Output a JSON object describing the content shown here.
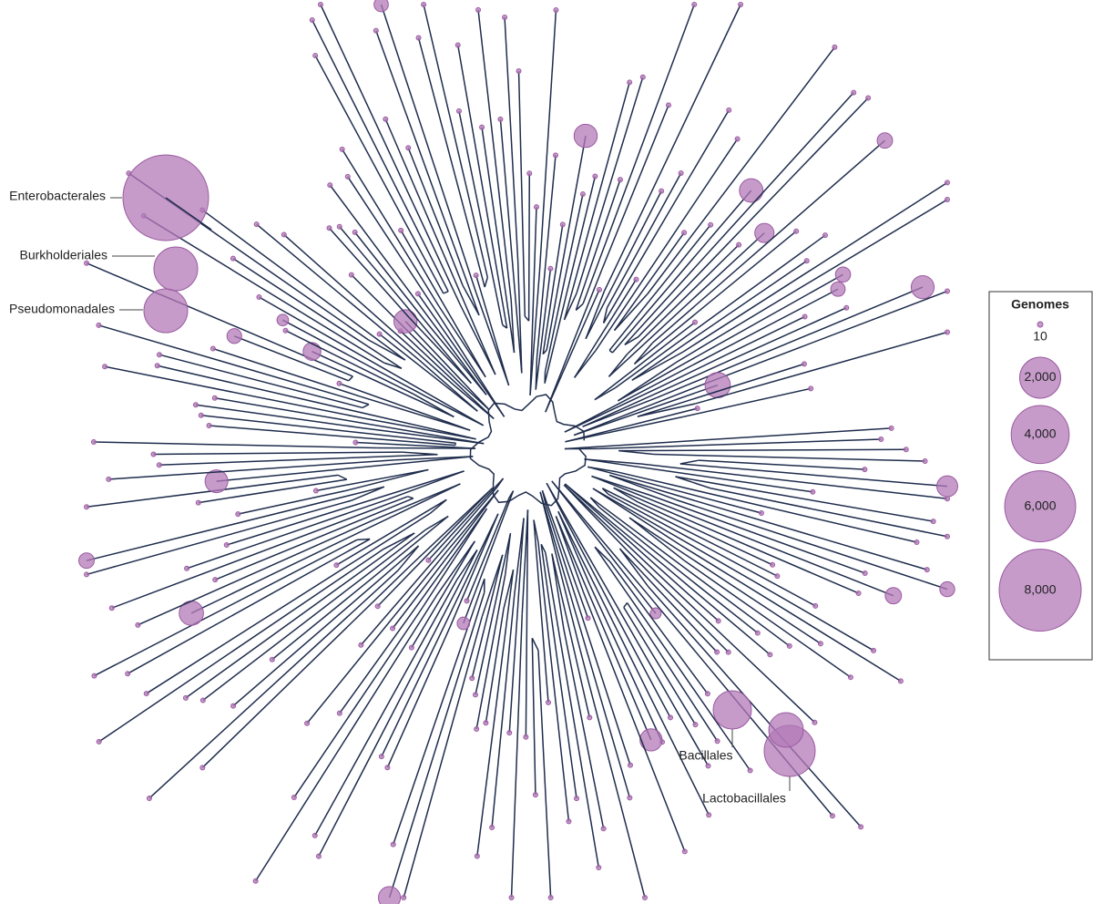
{
  "labels": {
    "enterobacterales": "Enterobacterales",
    "burkholderiales": "Burkholderiales",
    "pseudomonadales": "Pseudomonadales",
    "bacillales": "Bacillales",
    "lactobacillales": "Lactobacillales"
  },
  "legend": {
    "title": "Genomes",
    "sizes": [
      10,
      {
        "value": 2000,
        "label": "2,000"
      },
      {
        "value": 4000,
        "label": "4,000"
      },
      {
        "value": 6000,
        "label": "6,000"
      },
      {
        "value": 8000,
        "label": "8,000"
      }
    ]
  }
}
